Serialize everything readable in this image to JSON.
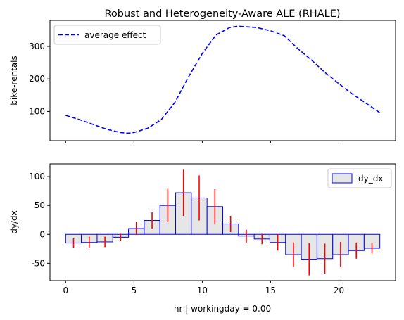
{
  "figure": {
    "title": "Robust and Heterogeneity-Aware ALE (RHALE)"
  },
  "chart_data": [
    {
      "type": "line",
      "panel": "top",
      "ylabel": "bike-rentals",
      "xlim": [
        -1.15,
        24.15
      ],
      "ylim": [
        10,
        380
      ],
      "yticks": [
        100,
        200,
        300
      ],
      "grid": false,
      "legend": "top-left",
      "series": [
        {
          "name": "average effect",
          "color": "#0000ff",
          "linestyle": "dashed",
          "x": [
            0,
            1,
            2,
            3,
            4,
            4.6,
            5,
            6,
            7,
            8,
            9,
            10,
            11,
            12,
            12.6,
            13,
            14,
            15,
            16,
            17,
            18,
            19,
            20,
            21,
            22,
            23
          ],
          "y": [
            88,
            75,
            60,
            45,
            35,
            33,
            35,
            48,
            75,
            128,
            207,
            278,
            335,
            358,
            362,
            361,
            358,
            348,
            333,
            293,
            258,
            219,
            185,
            153,
            125,
            96
          ]
        }
      ]
    },
    {
      "type": "bar",
      "panel": "bottom",
      "xlabel": "hr | workingday = 0.00",
      "ylabel": "dy/dx",
      "xlim": [
        -1.15,
        24.15
      ],
      "ylim": [
        -80,
        122
      ],
      "xticks": [
        0,
        5,
        10,
        15,
        20
      ],
      "yticks": [
        -50,
        0,
        50,
        100
      ],
      "grid": false,
      "legend": "top-right",
      "bar_width": 1.15,
      "bar_fill": "#e6e6e6",
      "bar_edge": "#0000ff",
      "error_color": "#ff0000",
      "series": [
        {
          "name": "dy_dx",
          "x_centers": [
            0.575,
            1.725,
            2.875,
            4.025,
            5.175,
            6.325,
            7.475,
            8.625,
            9.775,
            10.925,
            12.075,
            13.225,
            14.375,
            15.525,
            16.675,
            17.825,
            18.975,
            20.125,
            21.275,
            22.425
          ],
          "values": [
            -15,
            -14,
            -13,
            -5,
            10,
            24,
            50,
            72,
            63,
            48,
            18,
            -3,
            -8,
            -14,
            -35,
            -43,
            -42,
            -35,
            -28,
            -24
          ],
          "errors": [
            8,
            10,
            9,
            6,
            11,
            14,
            29,
            40,
            39,
            30,
            14,
            11,
            9,
            14,
            21,
            28,
            26,
            22,
            14,
            9
          ]
        }
      ]
    }
  ]
}
